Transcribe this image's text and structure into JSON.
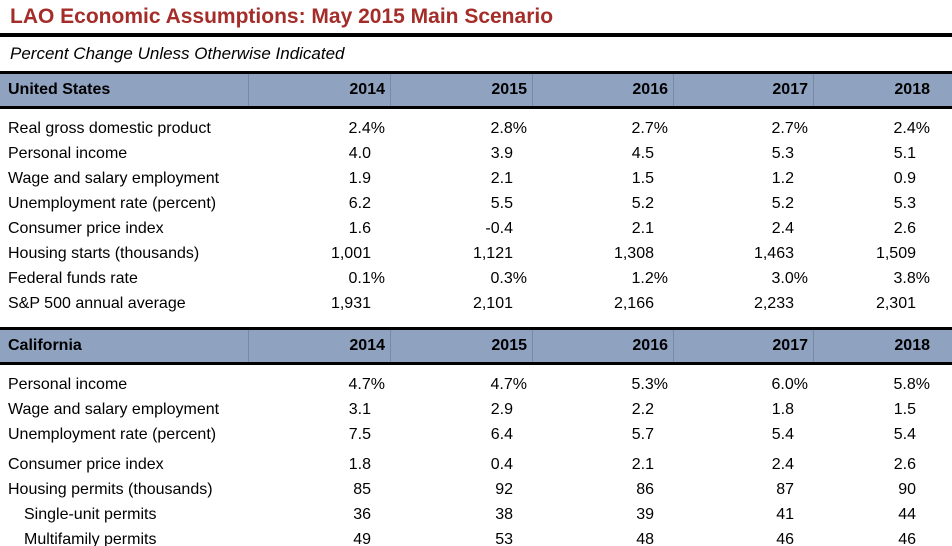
{
  "title": "LAO Economic Assumptions: May 2015 Main Scenario",
  "subtitle": "Percent Change Unless Otherwise Indicated",
  "colors": {
    "title_red": "#a42d29",
    "header_bg": "#8fa2c0",
    "header_divider": "#7689a8",
    "border_black": "#000000"
  },
  "years": [
    "2014",
    "2015",
    "2016",
    "2017",
    "2018"
  ],
  "sections": [
    {
      "label": "United States",
      "rows": [
        {
          "label": "Real gross domestic product",
          "values": [
            "2.4%",
            "2.8%",
            "2.7%",
            "2.7%",
            "2.4%"
          ]
        },
        {
          "label": "Personal income",
          "values": [
            "4.0",
            "3.9",
            "4.5",
            "5.3",
            "5.1"
          ]
        },
        {
          "label": "Wage and salary employment",
          "values": [
            "1.9",
            "2.1",
            "1.5",
            "1.2",
            "0.9"
          ]
        },
        {
          "label": "Unemployment rate (percent)",
          "values": [
            "6.2",
            "5.5",
            "5.2",
            "5.2",
            "5.3"
          ]
        },
        {
          "label": "Consumer price index",
          "values": [
            "1.6",
            "-0.4",
            "2.1",
            "2.4",
            "2.6"
          ]
        },
        {
          "label": "Housing starts (thousands)",
          "values": [
            "1,001",
            "1,121",
            "1,308",
            "1,463",
            "1,509"
          ]
        },
        {
          "label": "Federal funds rate",
          "values": [
            "0.1%",
            "0.3%",
            "1.2%",
            "3.0%",
            "3.8%"
          ]
        },
        {
          "label": "S&P 500 annual average",
          "values": [
            "1,931",
            "2,101",
            "2,166",
            "2,233",
            "2,301"
          ]
        }
      ]
    },
    {
      "label": "California",
      "rows": [
        {
          "label": "Personal income",
          "values": [
            "4.7%",
            "4.7%",
            "5.3%",
            "6.0%",
            "5.8%"
          ]
        },
        {
          "label": "Wage and salary employment",
          "values": [
            "3.1",
            "2.9",
            "2.2",
            "1.8",
            "1.5"
          ]
        },
        {
          "label": "Unemployment rate (percent)",
          "values": [
            "7.5",
            "6.4",
            "5.7",
            "5.4",
            "5.4"
          ],
          "gap_after": true
        },
        {
          "label": "Consumer price index",
          "values": [
            "1.8",
            "0.4",
            "2.1",
            "2.4",
            "2.6"
          ]
        },
        {
          "label": "Housing permits (thousands)",
          "values": [
            "85",
            "92",
            "86",
            "87",
            "90"
          ]
        },
        {
          "label": "Single-unit permits",
          "indent": true,
          "values": [
            "36",
            "38",
            "39",
            "41",
            "44"
          ]
        },
        {
          "label": "Multifamily permits",
          "indent": true,
          "values": [
            "49",
            "53",
            "48",
            "46",
            "46"
          ]
        }
      ]
    }
  ]
}
